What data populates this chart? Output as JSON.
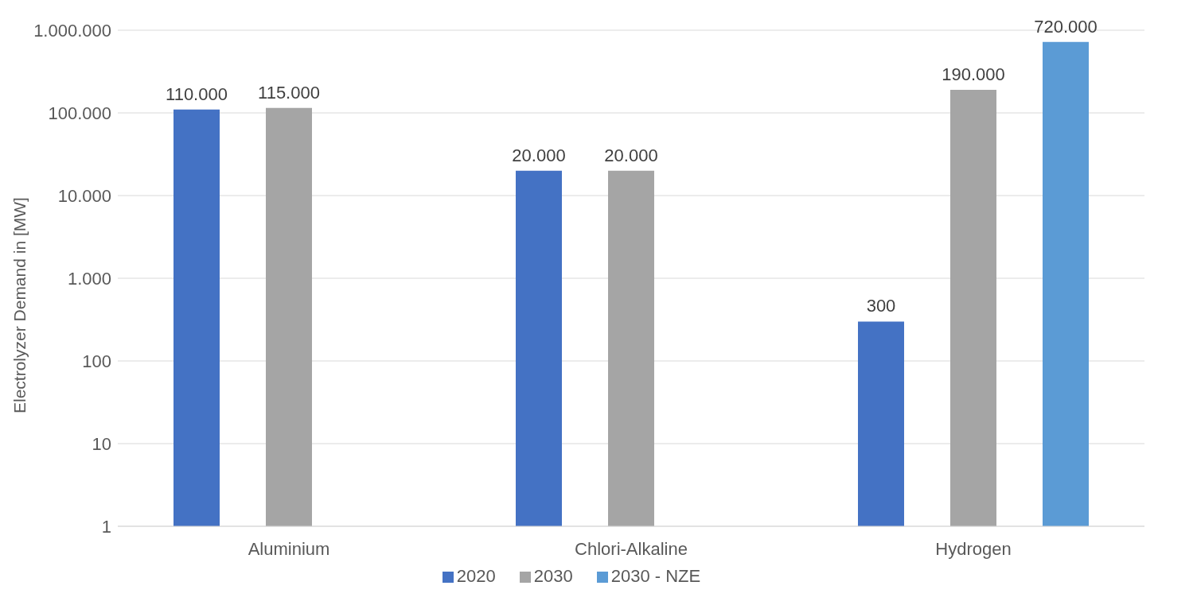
{
  "chart_data": {
    "type": "bar",
    "ylabel": "Electrolyzer Demand in [MW]",
    "categories": [
      "Aluminium",
      "Chlori-Alkaline",
      "Hydrogen"
    ],
    "series": [
      {
        "name": "2020",
        "color": "#4472c4",
        "values": [
          110000,
          20000,
          300
        ],
        "value_labels": [
          "110.000",
          "20.000",
          "300"
        ]
      },
      {
        "name": "2030",
        "color": "#a5a5a5",
        "values": [
          115000,
          20000,
          190000
        ],
        "value_labels": [
          "115.000",
          "20.000",
          "190.000"
        ]
      },
      {
        "name": "2030 - NZE",
        "color": "#5b9bd5",
        "values": [
          null,
          null,
          720000
        ],
        "value_labels": [
          null,
          null,
          "720.000"
        ]
      }
    ],
    "log": "y",
    "ylim": [
      1,
      1000000
    ],
    "yticks": [
      {
        "value": 1,
        "label": "1"
      },
      {
        "value": 10,
        "label": "10"
      },
      {
        "value": 100,
        "label": "100"
      },
      {
        "value": 1000,
        "label": "1.000"
      },
      {
        "value": 10000,
        "label": "10.000"
      },
      {
        "value": 100000,
        "label": "100.000"
      },
      {
        "value": 1000000,
        "label": "1.000.000"
      }
    ],
    "grid": "y",
    "legend": "bottom"
  }
}
